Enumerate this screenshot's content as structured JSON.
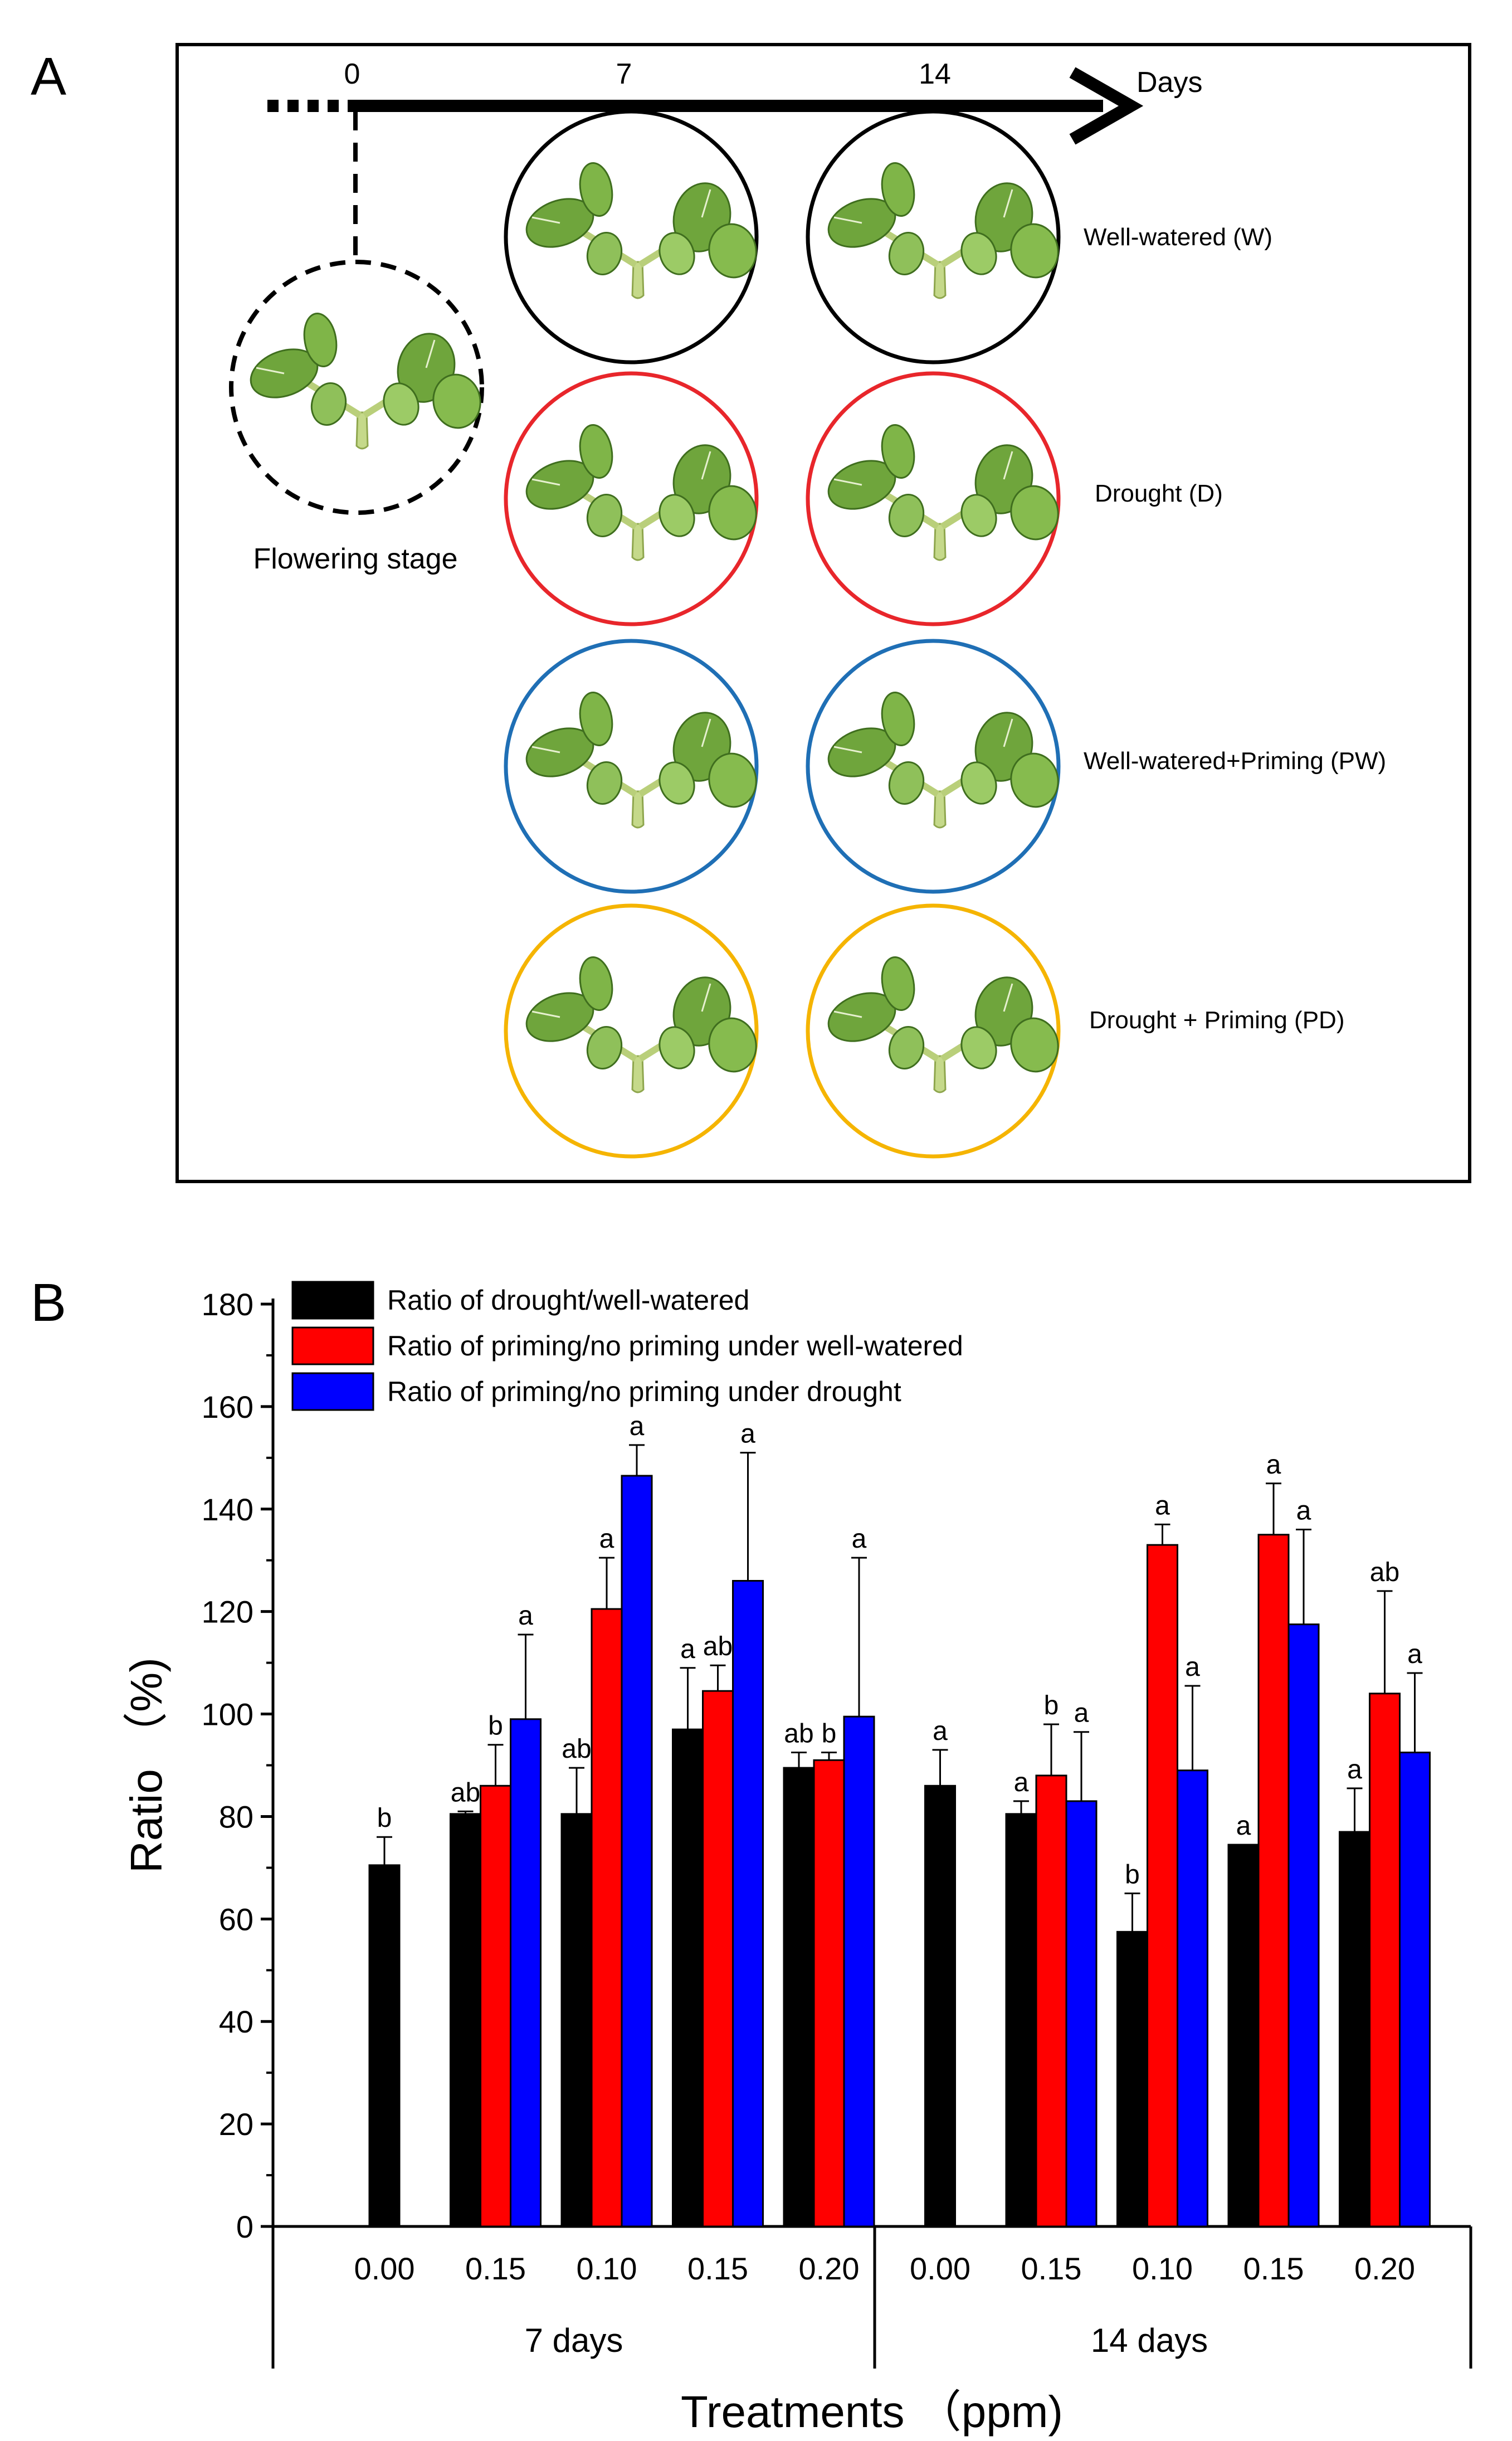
{
  "panel_a": {
    "letter": "A",
    "timeline": {
      "ticks": [
        "0",
        "7",
        "14"
      ],
      "unit": "Days"
    },
    "start_label": "Flowering stage",
    "conditions": [
      {
        "label": "Well-watered (W)",
        "color": "#000000"
      },
      {
        "label": "Drought (D)",
        "color": "#e8262b"
      },
      {
        "label": "Well-watered+Priming (PW)",
        "color": "#1f6fb5"
      },
      {
        "label": "Drought + Priming (PD)",
        "color": "#f5b400"
      }
    ]
  },
  "panel_b": {
    "letter": "B"
  },
  "chart_data": {
    "type": "bar",
    "xlabel": "Treatments （ppm)",
    "ylabel": "Ratio （%)",
    "ylim": [
      0,
      180
    ],
    "yticks": [
      0,
      20,
      40,
      60,
      80,
      100,
      120,
      140,
      160,
      180
    ],
    "groups": [
      "7 days",
      "14 days"
    ],
    "categories": [
      "0.00",
      "0.15",
      "0.10",
      "0.15",
      "0.20",
      "0.00",
      "0.15",
      "0.10",
      "0.15",
      "0.20"
    ],
    "legend_position": "top-left",
    "series": [
      {
        "name": "Ratio of drought/well-watered",
        "color": "#000000",
        "values": [
          70.5,
          80.5,
          80.5,
          97,
          89.5,
          86,
          80.5,
          57.5,
          74.5,
          77
        ],
        "errors": [
          5.5,
          0.5,
          9,
          12,
          3,
          7,
          2.5,
          7.5,
          0,
          8.5
        ],
        "labels": [
          "b",
          "ab",
          "ab",
          "a",
          "ab",
          "a",
          "a",
          "b",
          "a",
          "a"
        ]
      },
      {
        "name": "Ratio of priming/no priming under well-watered",
        "color": "#ff0000",
        "values": [
          null,
          86,
          120.5,
          104.5,
          91,
          null,
          88,
          133,
          135,
          104
        ],
        "errors": [
          null,
          8,
          10,
          5,
          1.5,
          null,
          10,
          4,
          10,
          20
        ],
        "labels": [
          "",
          "b",
          "a",
          "ab",
          "b",
          "",
          "b",
          "a",
          "a",
          "ab"
        ]
      },
      {
        "name": "Ratio of priming/no priming under drought",
        "color": "#0000ff",
        "values": [
          null,
          99,
          146.5,
          126,
          99.5,
          null,
          83,
          89,
          117.5,
          92.5
        ],
        "errors": [
          null,
          16.5,
          6,
          25,
          31,
          null,
          13.5,
          16.5,
          18.5,
          15.5
        ],
        "labels": [
          "",
          "a",
          "a",
          "a",
          "a",
          "",
          "a",
          "a",
          "a",
          "a"
        ]
      }
    ]
  }
}
